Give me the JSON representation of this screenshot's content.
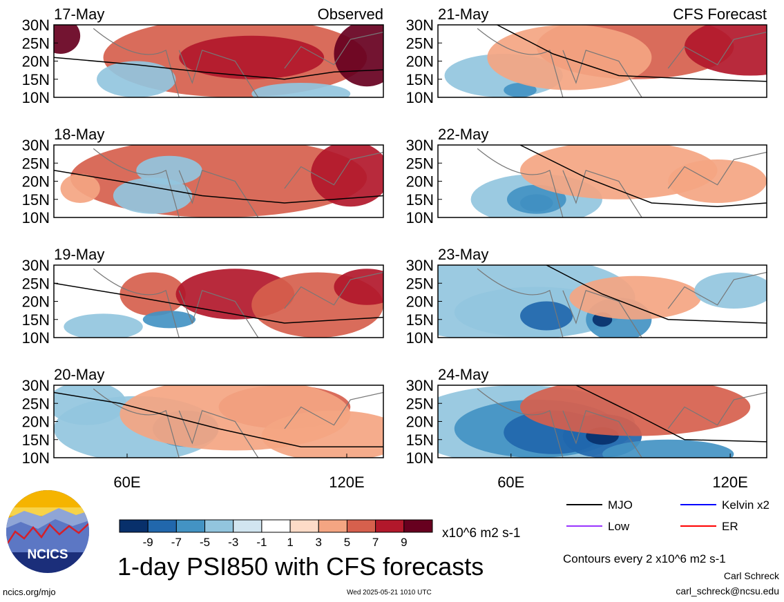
{
  "chart_data": {
    "type": "heatmap",
    "title": "1-day PSI850 with CFS forecasts",
    "variable": "PSI850",
    "units": "x10^6 m2 s-1",
    "contour_note": "Contours every 2 x10^6 m2 s-1",
    "observed_label": "Observed",
    "forecast_label": "CFS Forecast",
    "lat_ticks": [
      "30N",
      "25N",
      "20N",
      "15N",
      "10N"
    ],
    "lon_ticks": [
      "60E",
      "120E"
    ],
    "lat_range": [
      10,
      30
    ],
    "lon_range": [
      40,
      130
    ],
    "panels": [
      {
        "date": "17-May",
        "column": "Observed"
      },
      {
        "date": "18-May",
        "column": "Observed"
      },
      {
        "date": "19-May",
        "column": "Observed"
      },
      {
        "date": "20-May",
        "column": "Observed"
      },
      {
        "date": "21-May",
        "column": "CFS Forecast"
      },
      {
        "date": "22-May",
        "column": "CFS Forecast"
      },
      {
        "date": "23-May",
        "column": "CFS Forecast"
      },
      {
        "date": "24-May",
        "column": "CFS Forecast"
      }
    ],
    "colorbar": {
      "levels": [
        "-9",
        "-7",
        "-5",
        "-3",
        "-1",
        "1",
        "3",
        "5",
        "7",
        "9"
      ],
      "colors": [
        "#08306b",
        "#2167ac",
        "#4393c3",
        "#92c5de",
        "#d1e5f0",
        "#ffffff",
        "#fddbc7",
        "#f4a582",
        "#d6604d",
        "#b2182b",
        "#67001f"
      ]
    },
    "legend": [
      {
        "label": "MJO",
        "color": "#000000"
      },
      {
        "label": "Kelvin x2",
        "color": "#0000ff"
      },
      {
        "label": "Low",
        "color": "#9933ff"
      },
      {
        "label": "ER",
        "color": "#ff0000"
      }
    ]
  },
  "footer": {
    "author": "Carl Schreck",
    "email": "carl_schreck@ncsu.edu",
    "url": "ncics.org/mjo",
    "timestamp": "Wed 2025-05-21 1010 UTC",
    "logo_text": "NCICS"
  }
}
